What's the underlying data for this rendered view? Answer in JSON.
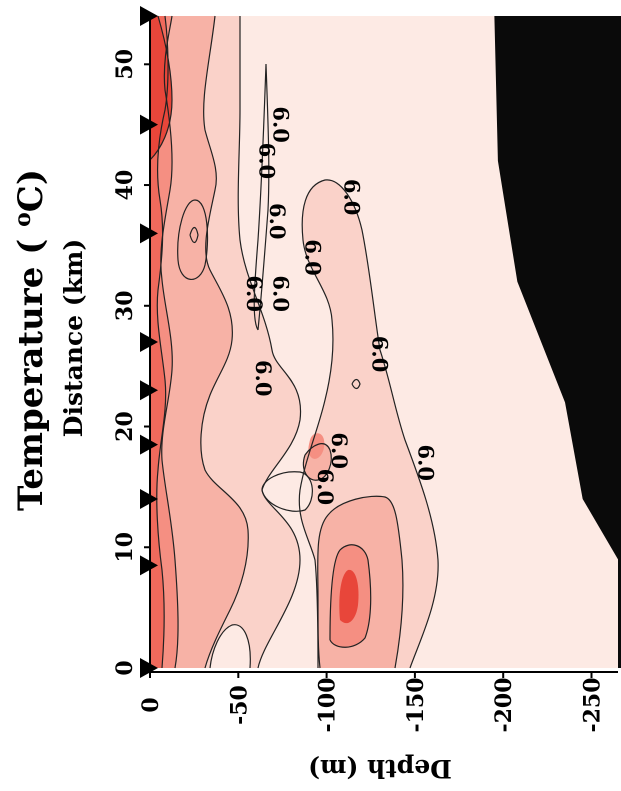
{
  "chart_data": {
    "type": "heatmap",
    "title": "Temperature ( °C)",
    "title_parts": {
      "prefix": "Temperature (",
      "degree": "o",
      "suffix": "C)"
    },
    "xlabel": "Distance (km)",
    "ylabel": "Depth (m)",
    "orientation": "rotated 90° counter-clockwise; depth increases toward the right edge of the page",
    "x_ticks": [
      0,
      10,
      20,
      30,
      40,
      50
    ],
    "y_ticks": [
      0,
      -50,
      -100,
      -150,
      -200,
      -250
    ],
    "xlim": [
      0,
      54
    ],
    "ylim": [
      -265,
      0
    ],
    "station_markers_km": [
      0,
      8.5,
      14,
      18.5,
      23,
      27,
      36,
      45,
      54
    ],
    "contour_labels": [
      {
        "text": "6.0",
        "distance": 42,
        "depth": -62
      },
      {
        "text": "6.0",
        "distance": 45,
        "depth": -70
      },
      {
        "text": "6.0",
        "distance": 37,
        "depth": -68
      },
      {
        "text": "6.0",
        "distance": 31,
        "depth": -55
      },
      {
        "text": "6.0",
        "distance": 31,
        "depth": -70
      },
      {
        "text": "6.0",
        "distance": 34,
        "depth": -88
      },
      {
        "text": "6.0",
        "distance": 39,
        "depth": -110
      },
      {
        "text": "6.0",
        "distance": 26,
        "depth": -126
      },
      {
        "text": "6.0",
        "distance": 24,
        "depth": -60
      },
      {
        "text": "6.0",
        "distance": 18,
        "depth": -103
      },
      {
        "text": "6.0",
        "distance": 15,
        "depth": -95
      },
      {
        "text": "6.0",
        "distance": 17,
        "depth": -152
      }
    ],
    "bottom_profile": [
      {
        "distance": 0,
        "depth": -265
      },
      {
        "distance": 9,
        "depth": -265
      },
      {
        "distance": 14,
        "depth": -245
      },
      {
        "distance": 22,
        "depth": -235
      },
      {
        "distance": 32,
        "depth": -208
      },
      {
        "distance": 42,
        "depth": -197
      },
      {
        "distance": 54,
        "depth": -195
      }
    ],
    "colors": {
      "deep_red": "#e8463a",
      "red": "#f06a5c",
      "salmon": "#f58f82",
      "light_salmon": "#f7b2a6",
      "pink": "#fad2c9",
      "pale": "#fdeae4",
      "seafloor": "#0a0a0a"
    }
  }
}
